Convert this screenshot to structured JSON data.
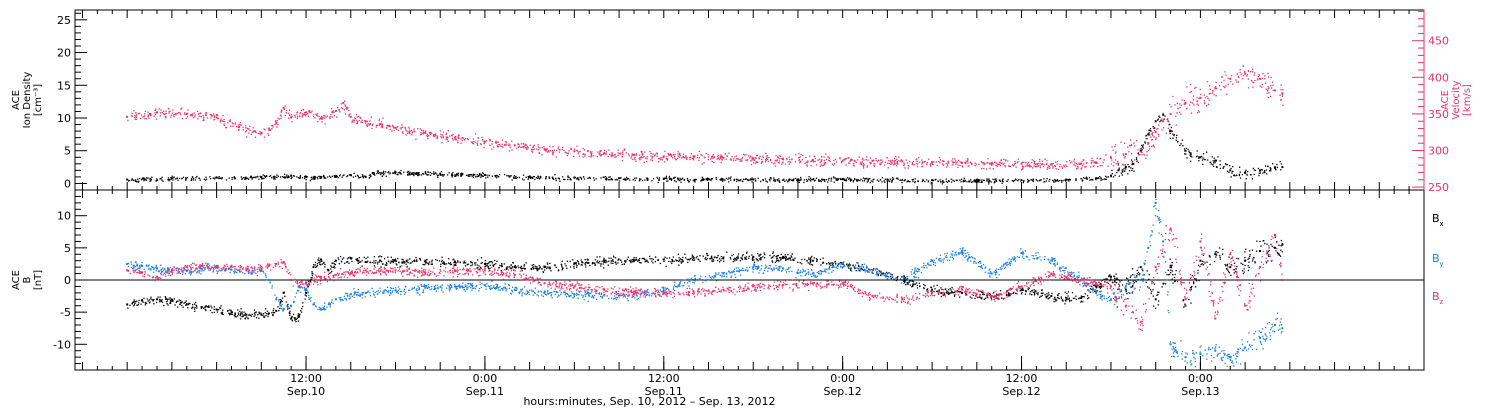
{
  "chart_data": [
    {
      "type": "scatter",
      "panel": "top",
      "title": "",
      "ylabel_lines": [
        "ACE",
        "Ion Density",
        "[cm⁻³]"
      ],
      "y2label_lines": [
        "ACE",
        "Velocity",
        "[km/s]"
      ],
      "ylim": [
        -1,
        26.5
      ],
      "yticks": [
        0,
        5,
        10,
        15,
        20,
        25
      ],
      "y2lim": [
        246,
        492
      ],
      "y2ticks": [
        250,
        300,
        350,
        400,
        450
      ],
      "colors": {
        "density": "#000000",
        "velocity": "#e8336b"
      },
      "series": [
        {
          "key": "density",
          "axis": "left",
          "hours": [
            0,
            3,
            6,
            9,
            11,
            12,
            12.5,
            13,
            15,
            16,
            16.5,
            18,
            21,
            24,
            27,
            30,
            33,
            36,
            39,
            42,
            45,
            48,
            51,
            54,
            57,
            60,
            63,
            65,
            66,
            66.5,
            67,
            67.5,
            68,
            68.5,
            69,
            69.5,
            70,
            71,
            72,
            73,
            74,
            75,
            76,
            77,
            77.5
          ],
          "values": [
            0.6,
            0.8,
            0.9,
            1.0,
            1.2,
            1.0,
            0.9,
            1.0,
            1.3,
            1.0,
            1.6,
            1.7,
            1.5,
            1.3,
            1.0,
            0.9,
            0.8,
            0.7,
            0.7,
            0.6,
            0.6,
            0.7,
            0.6,
            0.5,
            0.5,
            0.5,
            0.6,
            0.8,
            1.2,
            2.0,
            2.5,
            3.0,
            5.0,
            7.5,
            9.5,
            10.5,
            8.0,
            5.0,
            4.0,
            3.5,
            2.0,
            1.6,
            2.0,
            2.4,
            2.5
          ]
        },
        {
          "key": "velocity",
          "axis": "right",
          "hours": [
            0,
            2,
            4,
            6,
            7.5,
            8.5,
            9,
            9.5,
            10,
            10.5,
            11,
            12,
            13,
            14,
            14.5,
            15,
            16,
            17,
            18,
            20,
            22,
            24,
            26,
            28,
            30,
            32,
            34,
            36,
            38,
            40,
            42,
            44,
            46,
            48,
            50,
            52,
            54,
            56,
            58,
            60,
            62,
            64,
            65,
            66,
            67,
            68,
            68.5,
            69,
            69.5,
            70,
            71,
            72,
            73,
            74,
            75,
            76,
            77,
            77.5
          ],
          "values": [
            346,
            352,
            350,
            345,
            332,
            326,
            324,
            330,
            337,
            358,
            345,
            352,
            344,
            354,
            365,
            346,
            340,
            336,
            331,
            324,
            318,
            312,
            307,
            302,
            299,
            296,
            294,
            292,
            292,
            290,
            289,
            288,
            287,
            286,
            286,
            285,
            284,
            283,
            283,
            282,
            281,
            282,
            283,
            290,
            295,
            302,
            310,
            325,
            340,
            350,
            365,
            372,
            385,
            398,
            405,
            398,
            382,
            378
          ]
        }
      ]
    },
    {
      "type": "scatter",
      "panel": "bottom",
      "title": "",
      "ylabel_lines": [
        "ACE",
        "B",
        "[nT]"
      ],
      "ylim": [
        -14,
        14
      ],
      "yticks": [
        -10,
        -5,
        0,
        5,
        10
      ],
      "reference_line": 0,
      "legend": {
        "placement": "right",
        "entries": [
          {
            "base": "B",
            "sub": "x",
            "color": "#000000"
          },
          {
            "base": "B",
            "sub": "y",
            "color": "#1a7fe0"
          },
          {
            "base": "B",
            "sub": "z",
            "color": "#e8336b"
          }
        ]
      },
      "series": [
        {
          "name": "Bx",
          "color": "#000000",
          "hours": [
            0,
            1,
            2,
            3,
            4,
            5,
            6,
            7,
            8,
            9,
            9.5,
            10,
            10.5,
            11,
            11.5,
            12,
            12.5,
            13,
            13.5,
            14,
            15,
            15.5,
            16,
            18,
            20,
            22,
            24,
            26,
            28,
            30,
            32,
            34,
            36,
            38,
            40,
            42,
            44,
            46,
            48,
            50,
            52,
            54,
            56,
            58,
            60,
            62,
            64,
            65,
            66,
            67,
            68,
            69,
            70,
            71,
            72,
            73,
            74,
            75,
            76,
            77,
            77.5
          ],
          "values": [
            -3.8,
            -3.2,
            -3.0,
            -3.2,
            -3.8,
            -4.2,
            -4.6,
            -5.0,
            -5.4,
            -5.4,
            -5.2,
            -4.8,
            -2.0,
            -6.0,
            -5.6,
            -2.0,
            2.0,
            3.2,
            1.5,
            3.0,
            3.4,
            3.0,
            2.8,
            3.0,
            3.0,
            2.8,
            2.5,
            2.0,
            2.0,
            2.6,
            3.0,
            3.0,
            3.2,
            3.4,
            3.5,
            3.6,
            3.6,
            3.0,
            2.6,
            1.5,
            0.0,
            -1.5,
            -2.0,
            -2.5,
            -1.5,
            -2.5,
            -2.8,
            -1.0,
            0.5,
            -1.5,
            2.0,
            -3.0,
            2.0,
            -4.0,
            3.0,
            4.0,
            2.0,
            3.0,
            4.5,
            5.0,
            5.5
          ]
        },
        {
          "name": "By",
          "color": "#1a7fe0",
          "hours": [
            0,
            1,
            2,
            3,
            4,
            5,
            6,
            7,
            8,
            9,
            9.5,
            10,
            10.5,
            11,
            11.5,
            12,
            12.5,
            13,
            14,
            15,
            16,
            18,
            20,
            22,
            24,
            26,
            28,
            30,
            32,
            34,
            36,
            38,
            40,
            42,
            44,
            46,
            48,
            50,
            52,
            54,
            56,
            58,
            60,
            62,
            64,
            65,
            66,
            67,
            68,
            68.5,
            69,
            69.5,
            70,
            71,
            72,
            73,
            74,
            75,
            76,
            77,
            77.5
          ],
          "values": [
            2.5,
            2.2,
            1.8,
            1.5,
            1.4,
            1.8,
            2.0,
            1.6,
            1.5,
            1.5,
            0.0,
            -3.0,
            -4.5,
            -4.0,
            -1.0,
            -1.5,
            -3.8,
            -4.6,
            -3.0,
            -2.2,
            -2.0,
            -1.6,
            -1.2,
            -1.0,
            -0.8,
            -1.5,
            -2.0,
            -2.2,
            -2.4,
            -2.2,
            -1.6,
            0.0,
            1.0,
            2.0,
            1.8,
            1.0,
            2.5,
            1.5,
            0.0,
            3.0,
            4.5,
            1.0,
            4.2,
            3.0,
            0.0,
            -2.0,
            -3.0,
            -1.0,
            0.0,
            5.0,
            12.0,
            6.0,
            -10.0,
            -12.0,
            -11.5,
            -11.0,
            -12.0,
            -10.5,
            -9.0,
            -7.0,
            -7.5
          ]
        },
        {
          "name": "Bz",
          "color": "#e8336b",
          "hours": [
            0,
            1,
            2,
            3,
            4,
            5,
            6,
            7,
            8,
            9,
            9.5,
            10,
            10.5,
            11,
            12,
            13,
            14,
            15,
            16,
            18,
            20,
            22,
            24,
            26,
            28,
            30,
            32,
            34,
            36,
            38,
            40,
            42,
            44,
            46,
            48,
            50,
            52,
            54,
            56,
            58,
            60,
            62,
            64,
            65,
            66,
            67,
            68,
            69,
            70,
            71,
            72,
            73,
            74,
            75,
            76,
            77,
            77.5
          ],
          "values": [
            1.5,
            1.2,
            0.5,
            1.5,
            2.0,
            2.2,
            2.0,
            2.2,
            1.8,
            1.8,
            2.2,
            2.5,
            2.8,
            0.0,
            -0.5,
            0.5,
            0.8,
            1.0,
            1.5,
            1.5,
            1.2,
            1.4,
            1.5,
            0.8,
            -0.5,
            -1.0,
            -1.5,
            -1.8,
            -2.0,
            -1.8,
            -1.5,
            -1.0,
            -0.8,
            -0.5,
            -0.5,
            -2.5,
            -3.0,
            -2.0,
            -1.5,
            -2.5,
            -1.0,
            1.0,
            0.0,
            -0.5,
            -1.0,
            -4.0,
            -6.5,
            2.0,
            8.0,
            -3.0,
            6.0,
            -6.0,
            4.0,
            -4.0,
            2.0,
            7.0,
            0.0
          ]
        }
      ]
    }
  ],
  "x_axis": {
    "xlabel": "hours:minutes, Sep. 10, 2012 – Sep. 13, 2012",
    "xlim_hours": [
      -3.5,
      87
    ],
    "minor_step_hours": 1,
    "major_step_hours": 3,
    "ticks": [
      {
        "hour": 12,
        "time": "12:00",
        "date": "Sep.10"
      },
      {
        "hour": 24,
        "time": "0:00",
        "date": "Sep.11"
      },
      {
        "hour": 36,
        "time": "12:00",
        "date": "Sep.11"
      },
      {
        "hour": 48,
        "time": "0:00",
        "date": "Sep.12"
      },
      {
        "hour": 60,
        "time": "12:00",
        "date": "Sep.12"
      },
      {
        "hour": 72,
        "time": "0:00",
        "date": "Sep.13"
      }
    ]
  }
}
